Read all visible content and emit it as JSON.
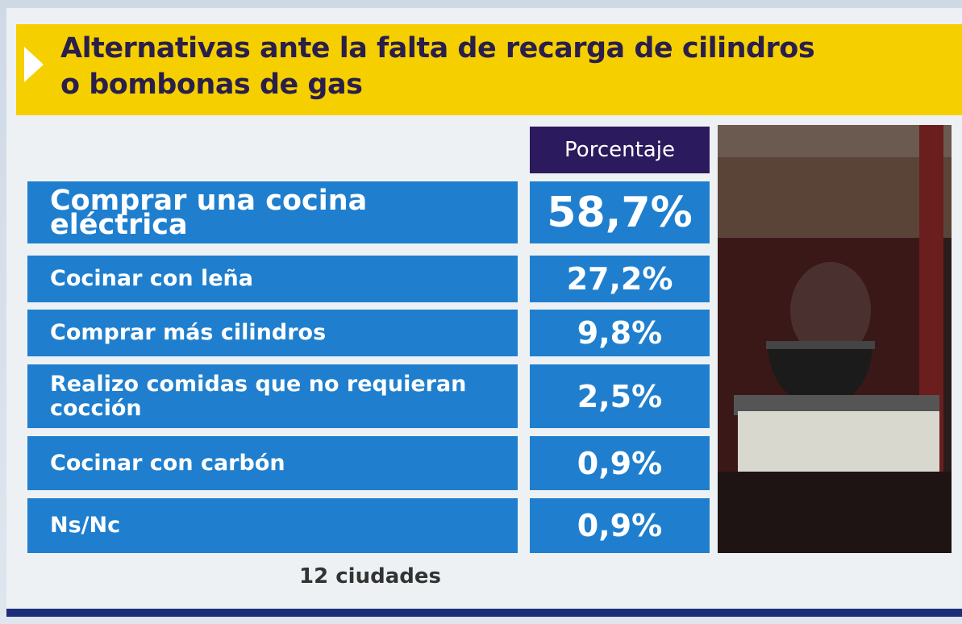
{
  "header": {
    "title_lines": [
      "Alternativas ante la falta de recarga de cilindros",
      "o bombonas de gas"
    ]
  },
  "table": {
    "column_header": "Porcentaje",
    "rows": [
      [
        "Comprar una cocina eléctrica",
        "58,7%"
      ],
      [
        "Cocinar con leña",
        "27,2%"
      ],
      [
        "Comprar más cilindros",
        "9,8%"
      ],
      [
        "Realizo comidas que no requieran cocción",
        "2,5%"
      ],
      [
        "Cocinar con carbón",
        "0,9%"
      ],
      [
        "Ns/Nc",
        "0,9%"
      ]
    ]
  },
  "footer": {
    "note": "12 ciudades"
  }
}
